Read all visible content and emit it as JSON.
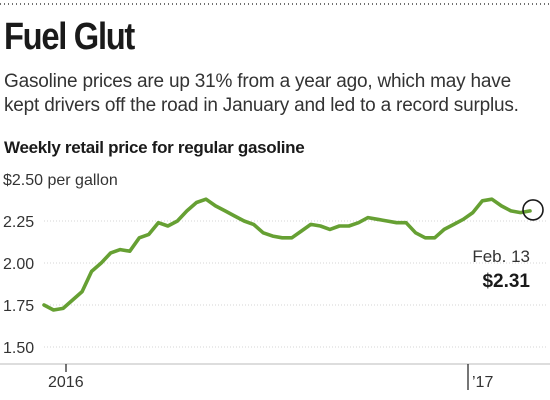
{
  "header": {
    "title": "Fuel Glut",
    "subtitle": "Gasoline prices are up 31% from a year ago, which may have kept drivers off the road in January and led to a record surplus.",
    "chart_title": "Weekly retail price for regular gasoline"
  },
  "colors": {
    "line": "#66a033",
    "text": "#333333",
    "grid": "#d4d4d4",
    "marker": "#1a1a1a"
  },
  "chart_data": {
    "type": "line",
    "title": "Weekly retail price for regular gasoline",
    "ylabel": "$2.50 per gallon",
    "ylim": [
      1.5,
      2.5
    ],
    "yticks": [
      {
        "value": 2.5,
        "label": "$2.50 per gallon"
      },
      {
        "value": 2.25,
        "label": "2.25"
      },
      {
        "value": 2.0,
        "label": "2.00"
      },
      {
        "value": 1.75,
        "label": "1.75"
      },
      {
        "value": 1.5,
        "label": "1.50"
      }
    ],
    "xticks": [
      {
        "value": 0,
        "label": "2016"
      },
      {
        "value": 52,
        "label": "’17"
      }
    ],
    "grid": true,
    "series": [
      {
        "values": [
          1.75,
          1.72,
          1.73,
          1.78,
          1.83,
          1.95,
          2.0,
          2.06,
          2.08,
          2.07,
          2.15,
          2.17,
          2.24,
          2.22,
          2.25,
          2.31,
          2.36,
          2.38,
          2.34,
          2.31,
          2.28,
          2.25,
          2.23,
          2.18,
          2.16,
          2.15,
          2.15,
          2.19,
          2.23,
          2.22,
          2.2,
          2.22,
          2.22,
          2.24,
          2.27,
          2.26,
          2.25,
          2.24,
          2.24,
          2.18,
          2.15,
          2.15,
          2.2,
          2.23,
          2.26,
          2.3,
          2.37,
          2.38,
          2.34,
          2.31,
          2.3,
          2.31
        ]
      }
    ],
    "annotation": {
      "date": "Feb. 13",
      "value": "$2.31"
    }
  }
}
